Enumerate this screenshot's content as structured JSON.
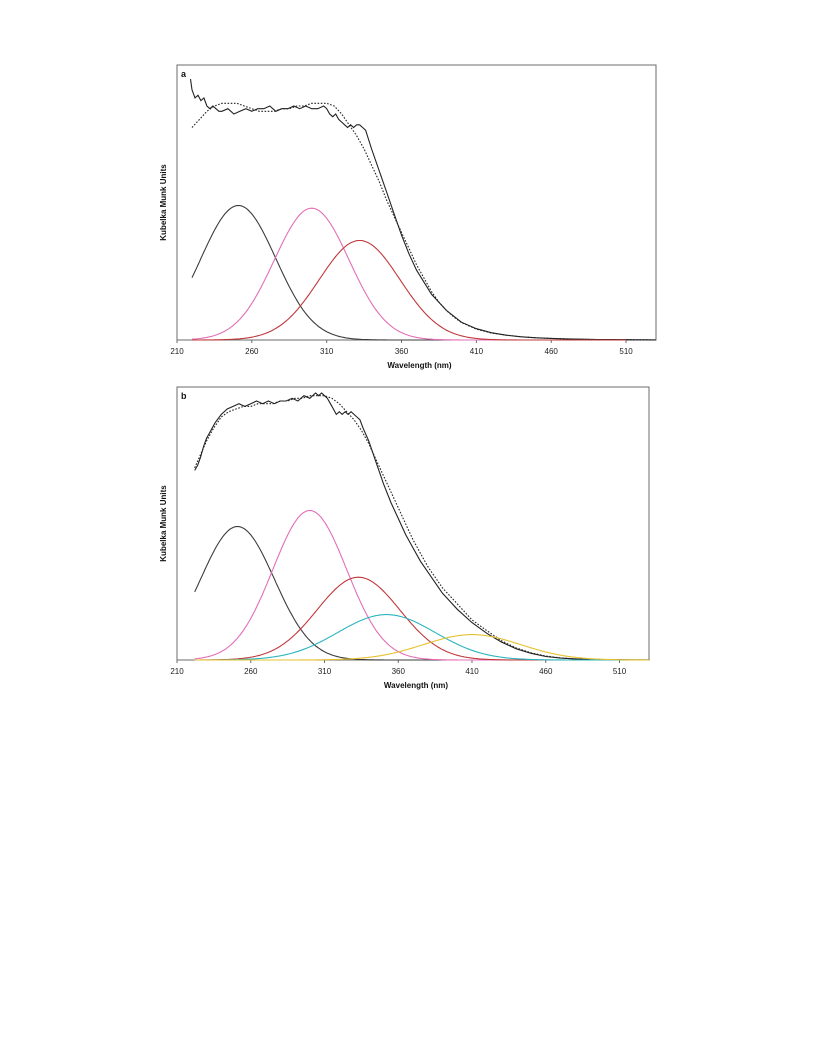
{
  "chart_data": [
    {
      "type": "line",
      "panel_label": "a",
      "xlabel": "Wavelength (nm)",
      "ylabel": "Kubelka Munk Units",
      "xlim": [
        210,
        530
      ],
      "ylim": [
        0,
        1.0
      ],
      "xticks": [
        "210",
        "260",
        "310",
        "360",
        "410",
        "460",
        "510"
      ],
      "xtick_values": [
        210,
        260,
        310,
        360,
        410,
        460,
        510
      ],
      "series": [
        {
          "role": "measured",
          "color": "#222222",
          "dash": "solid",
          "x": [
            219,
            220,
            222,
            224,
            226,
            228,
            230,
            232,
            234,
            236,
            238,
            240,
            244,
            248,
            252,
            256,
            260,
            264,
            268,
            272,
            276,
            280,
            284,
            288,
            292,
            296,
            300,
            304,
            308,
            310,
            312,
            314,
            316,
            318,
            320,
            322,
            324,
            326,
            328,
            330,
            332,
            334,
            336,
            340,
            345,
            350,
            355,
            360,
            365,
            370,
            380,
            390,
            400,
            410,
            420,
            430,
            440,
            450,
            460,
            470,
            480,
            490,
            500,
            510,
            520,
            530
          ],
          "y": [
            0.97,
            0.93,
            0.9,
            0.91,
            0.89,
            0.9,
            0.87,
            0.86,
            0.87,
            0.86,
            0.85,
            0.85,
            0.86,
            0.84,
            0.85,
            0.86,
            0.85,
            0.86,
            0.86,
            0.87,
            0.85,
            0.86,
            0.86,
            0.87,
            0.86,
            0.87,
            0.86,
            0.86,
            0.87,
            0.86,
            0.84,
            0.83,
            0.84,
            0.82,
            0.81,
            0.8,
            0.79,
            0.8,
            0.79,
            0.8,
            0.8,
            0.79,
            0.78,
            0.71,
            0.63,
            0.55,
            0.47,
            0.39,
            0.32,
            0.26,
            0.17,
            0.11,
            0.066,
            0.042,
            0.027,
            0.018,
            0.012,
            0.008,
            0.006,
            0.004,
            0.003,
            0.002,
            0.0015,
            0.001,
            0.0008,
            0.0005
          ]
        },
        {
          "role": "fit-envelope",
          "color": "#222222",
          "dash": "dotted",
          "x": [
            220,
            225,
            230,
            235,
            240,
            245,
            250,
            255,
            260,
            265,
            270,
            275,
            280,
            285,
            290,
            295,
            300,
            305,
            310,
            315,
            320,
            325,
            330,
            335,
            340,
            345,
            350,
            355,
            360,
            365,
            370,
            375,
            380,
            385,
            390,
            395,
            400,
            410,
            420,
            430,
            440,
            450,
            460,
            470,
            480,
            490,
            500,
            510,
            520,
            530
          ],
          "y": [
            0.79,
            0.82,
            0.85,
            0.87,
            0.88,
            0.88,
            0.88,
            0.87,
            0.86,
            0.85,
            0.85,
            0.85,
            0.86,
            0.86,
            0.87,
            0.87,
            0.88,
            0.88,
            0.88,
            0.87,
            0.84,
            0.8,
            0.76,
            0.71,
            0.65,
            0.59,
            0.52,
            0.46,
            0.4,
            0.34,
            0.28,
            0.23,
            0.18,
            0.14,
            0.11,
            0.085,
            0.065,
            0.04,
            0.026,
            0.018,
            0.012,
            0.008,
            0.006,
            0.004,
            0.003,
            0.002,
            0.0015,
            0.001,
            0.0008,
            0.0005
          ]
        },
        {
          "role": "component",
          "color": "#3c3c3c",
          "center": 251,
          "sigma": 25,
          "amplitude": 0.5,
          "range": [
            220,
            500
          ]
        },
        {
          "role": "component",
          "color": "#e36fb6",
          "center": 300,
          "sigma": 25,
          "amplitude": 0.49,
          "range": [
            220,
            500
          ]
        },
        {
          "role": "component",
          "color": "#c0383b",
          "center": 332,
          "sigma": 27,
          "amplitude": 0.37,
          "range": [
            220,
            510
          ]
        }
      ]
    },
    {
      "type": "line",
      "panel_label": "b",
      "xlabel": "Wavelength (nm)",
      "ylabel": "Kubelka Munk Units",
      "xlim": [
        210,
        530
      ],
      "ylim": [
        0,
        1.0
      ],
      "xticks": [
        "210",
        "260",
        "310",
        "360",
        "410",
        "460",
        "510"
      ],
      "xtick_values": [
        210,
        260,
        310,
        360,
        410,
        460,
        510
      ],
      "series": [
        {
          "role": "measured",
          "color": "#222222",
          "dash": "solid",
          "x": [
            222,
            224,
            226,
            228,
            230,
            232,
            234,
            236,
            240,
            244,
            248,
            252,
            256,
            260,
            264,
            268,
            272,
            276,
            280,
            284,
            288,
            292,
            296,
            300,
            304,
            306,
            308,
            310,
            312,
            314,
            316,
            318,
            320,
            322,
            324,
            326,
            328,
            330,
            332,
            334,
            336,
            340,
            345,
            350,
            355,
            360,
            365,
            370,
            375,
            380,
            385,
            390,
            395,
            400,
            410,
            420,
            430,
            440,
            450,
            460,
            470,
            480,
            490,
            500,
            510,
            520,
            530
          ],
          "y": [
            0.71,
            0.73,
            0.76,
            0.8,
            0.83,
            0.85,
            0.87,
            0.89,
            0.92,
            0.94,
            0.95,
            0.96,
            0.95,
            0.96,
            0.97,
            0.96,
            0.97,
            0.96,
            0.97,
            0.97,
            0.98,
            0.97,
            0.99,
            0.98,
            1.0,
            0.99,
            1.0,
            0.99,
            0.98,
            0.96,
            0.94,
            0.92,
            0.93,
            0.92,
            0.93,
            0.92,
            0.93,
            0.92,
            0.91,
            0.9,
            0.87,
            0.82,
            0.74,
            0.66,
            0.59,
            0.53,
            0.47,
            0.42,
            0.37,
            0.33,
            0.29,
            0.25,
            0.22,
            0.19,
            0.14,
            0.1,
            0.067,
            0.042,
            0.025,
            0.013,
            0.007,
            0.004,
            0.002,
            0.001,
            0.0006,
            0.0003,
            0.0002
          ]
        },
        {
          "role": "fit-envelope",
          "color": "#222222",
          "dash": "dotted",
          "x": [
            222,
            226,
            230,
            235,
            240,
            245,
            250,
            255,
            260,
            265,
            270,
            275,
            280,
            285,
            290,
            295,
            300,
            305,
            310,
            315,
            320,
            325,
            330,
            335,
            340,
            345,
            350,
            355,
            360,
            365,
            370,
            375,
            380,
            385,
            390,
            395,
            400,
            410,
            420,
            430,
            440,
            450,
            460,
            470,
            480,
            490,
            500,
            510,
            520,
            530
          ],
          "y": [
            0.72,
            0.77,
            0.82,
            0.87,
            0.91,
            0.93,
            0.94,
            0.95,
            0.95,
            0.96,
            0.96,
            0.96,
            0.97,
            0.97,
            0.98,
            0.98,
            0.99,
            0.99,
            0.99,
            0.98,
            0.96,
            0.93,
            0.9,
            0.86,
            0.81,
            0.75,
            0.69,
            0.63,
            0.57,
            0.51,
            0.45,
            0.4,
            0.35,
            0.31,
            0.27,
            0.24,
            0.21,
            0.15,
            0.11,
            0.072,
            0.045,
            0.027,
            0.015,
            0.008,
            0.004,
            0.002,
            0.001,
            0.0006,
            0.0003,
            0.0002
          ]
        },
        {
          "role": "component",
          "color": "#3c3c3c",
          "center": 251,
          "sigma": 25,
          "amplitude": 0.5,
          "range": [
            222,
            500
          ]
        },
        {
          "role": "component",
          "color": "#e36fb6",
          "center": 300,
          "sigma": 25,
          "amplitude": 0.56,
          "range": [
            222,
            500
          ]
        },
        {
          "role": "component",
          "color": "#c0383b",
          "center": 333,
          "sigma": 28,
          "amplitude": 0.31,
          "range": [
            222,
            510
          ]
        },
        {
          "role": "component",
          "color": "#2bb5bf",
          "center": 352,
          "sigma": 33,
          "amplitude": 0.17,
          "range": [
            222,
            530
          ]
        },
        {
          "role": "component",
          "color": "#e5c12f",
          "center": 410,
          "sigma": 33,
          "amplitude": 0.095,
          "range": [
            222,
            530
          ]
        }
      ]
    }
  ]
}
